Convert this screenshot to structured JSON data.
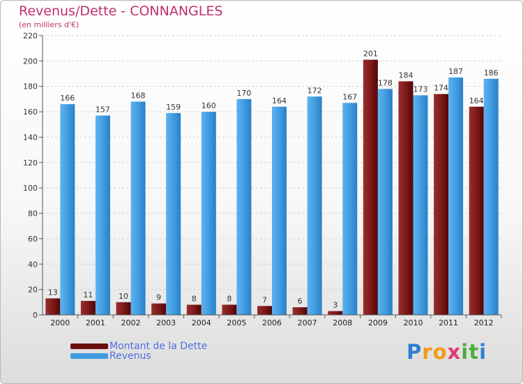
{
  "header": {
    "title": "Revenus/Dette - CONNANGLES",
    "subtitle": "(en milliers d'€)"
  },
  "chart_data": {
    "type": "bar",
    "title": "Revenus/Dette - CONNANGLES",
    "ylabel": "(en milliers d'€)",
    "xlabel": "",
    "categories": [
      "2000",
      "2001",
      "2002",
      "2003",
      "2004",
      "2005",
      "2006",
      "2007",
      "2008",
      "2009",
      "2010",
      "2011",
      "2012"
    ],
    "series": [
      {
        "name": "Montant de la Dette",
        "color": "#6b0d0d",
        "values": [
          13,
          11,
          10,
          9,
          8,
          8,
          7,
          6,
          3,
          201,
          184,
          174,
          164
        ]
      },
      {
        "name": "Revenus",
        "color": "#3f9be0",
        "values": [
          166,
          157,
          168,
          159,
          160,
          170,
          164,
          172,
          167,
          178,
          173,
          187,
          186
        ]
      }
    ],
    "ylim": [
      0,
      220
    ],
    "yticks": [
      0,
      20,
      40,
      60,
      80,
      100,
      120,
      140,
      160,
      180,
      200,
      220
    ],
    "grid": true
  },
  "legend": {
    "items": [
      {
        "label": "Montant de la Dette",
        "color": "#6b0d0d"
      },
      {
        "label": "Revenus",
        "color": "#3f9be0"
      }
    ]
  },
  "logo": {
    "text": "Proxiti",
    "letters": [
      "P",
      "r",
      "o",
      "x",
      "i",
      "t",
      "i"
    ],
    "colors": [
      "#2f7fd0",
      "#f29a1a",
      "#f29a1a",
      "#e23b6f",
      "#4cae3e",
      "#4cae3e",
      "#2f7fd0"
    ]
  }
}
